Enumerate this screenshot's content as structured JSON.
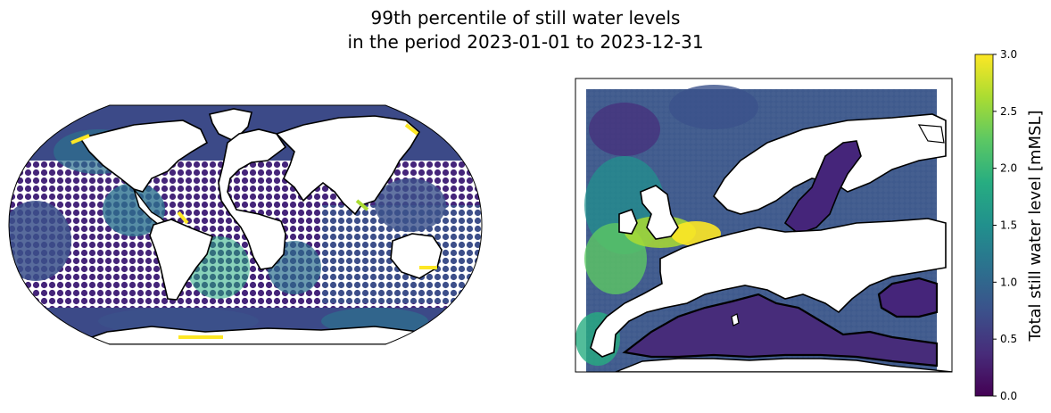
{
  "title": {
    "line1": "99th percentile of still water levels",
    "line2": "in the period 2023-01-01 to 2023-12-31"
  },
  "colorbar": {
    "label": "Total still water level [mMSL]",
    "ticks": [
      "0.0",
      "0.5",
      "1.0",
      "1.5",
      "2.0",
      "2.5",
      "3.0"
    ],
    "min": 0.0,
    "max": 3.0,
    "colormap": "viridis",
    "stops": [
      "#440154",
      "#472c7a",
      "#3b518b",
      "#2c718e",
      "#21908d",
      "#27ad81",
      "#5cc863",
      "#aadc32",
      "#fde725"
    ]
  },
  "maps": [
    {
      "name": "global-map",
      "projection": "Robinson",
      "extent": "global"
    },
    {
      "name": "europe-map",
      "projection": "PlateCarree",
      "extent": "Europe"
    }
  ]
}
